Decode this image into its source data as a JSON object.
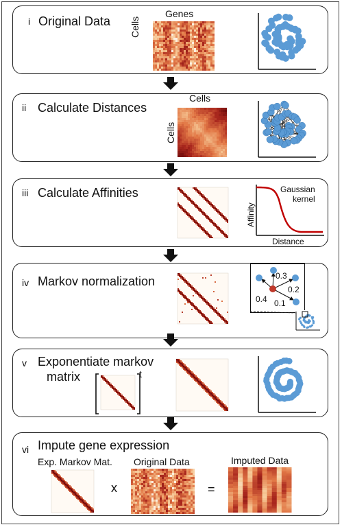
{
  "panels": [
    {
      "num": "i",
      "title": "Original Data",
      "top_label": "Genes",
      "side_label": "Cells"
    },
    {
      "num": "ii",
      "title": "Calculate Distances",
      "top_label": "Cells",
      "side_label": "Cells"
    },
    {
      "num": "iii",
      "title": "Calculate Affinities",
      "curve_title_line1": "Gaussian",
      "curve_title_line2": "kernel",
      "curve_ylabel": "Affinity",
      "curve_xlabel": "Distance"
    },
    {
      "num": "iv",
      "title": "Markov normalization",
      "weights": [
        "0.3",
        "0.2",
        "0.4",
        "0.1"
      ]
    },
    {
      "num": "v",
      "title_line1": "Exponentiate markov",
      "title_line2": "matrix",
      "exponent": "t"
    },
    {
      "num": "vi",
      "title": "Impute gene expression",
      "label_markov": "Exp. Markov Mat.",
      "label_original": "Original Data",
      "label_imputed": "Imputed Data",
      "times_sign": "x",
      "equals_sign": "="
    }
  ],
  "colors": {
    "point": "#5b9bd5",
    "dark_red": "#7a0f0f",
    "curve": "#c00000",
    "heat_light": "#fbeee0",
    "node_red": "#c0392b"
  }
}
